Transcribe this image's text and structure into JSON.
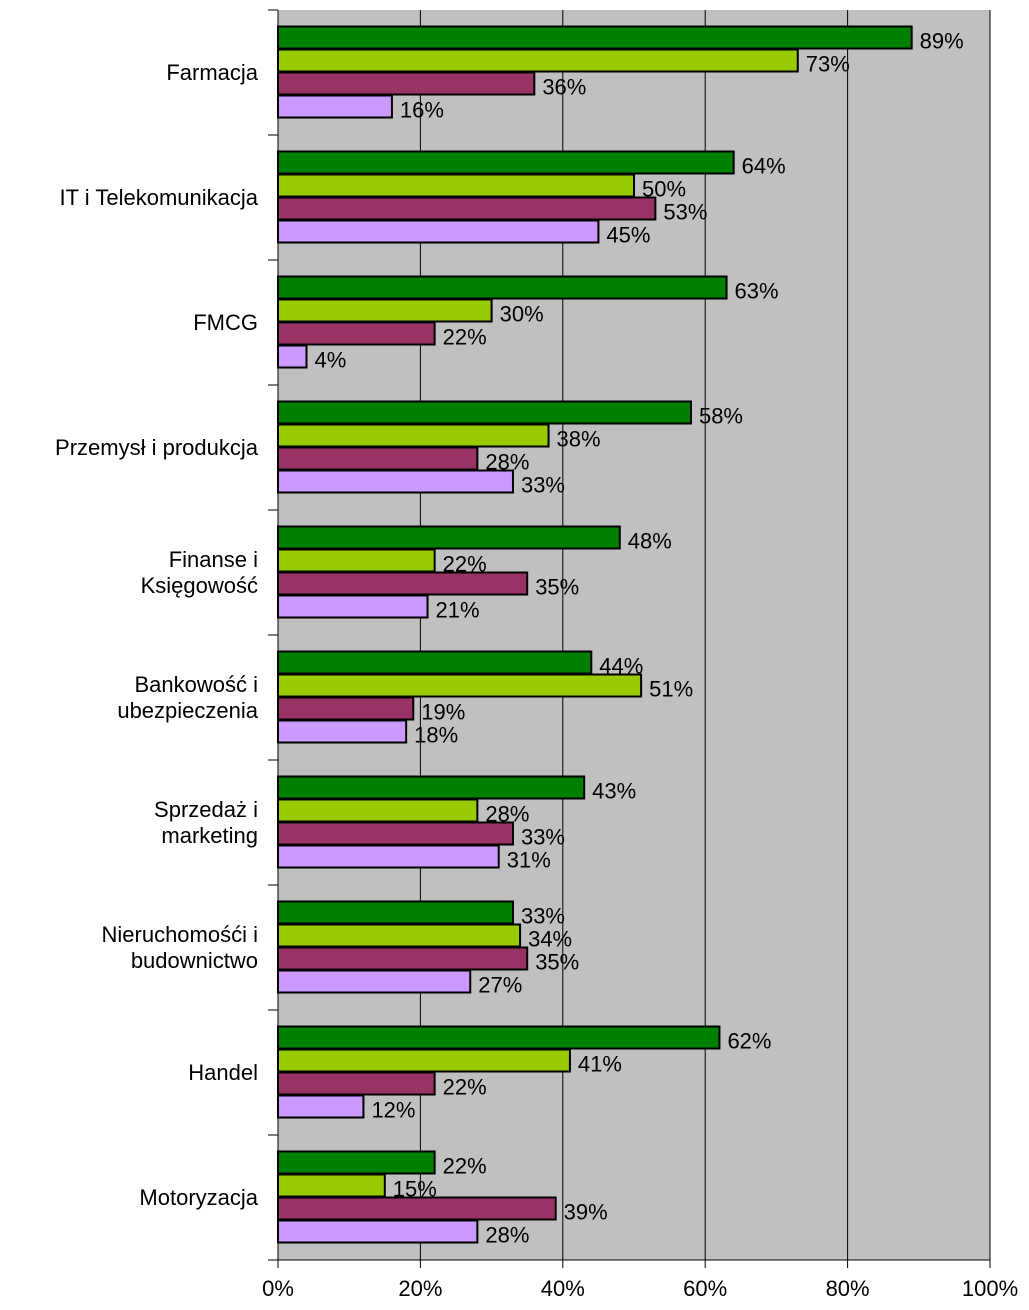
{
  "chart_data": {
    "type": "hbar",
    "categories": [
      "Farmacja",
      "IT i Telekomunikacja",
      "FMCG",
      "Przemysł i produkcja",
      "Finanse i\nKsięgowość",
      "Bankowość i\nubezpieczenia",
      "Sprzedaż i\nmarketing",
      "Nieruchomośći i\nbudownictwo",
      "Handel",
      "Motoryzacja"
    ],
    "series": [
      {
        "color": "#008000",
        "values": [
          89,
          64,
          63,
          58,
          48,
          44,
          43,
          33,
          62,
          22
        ],
        "value_labels": [
          "89%",
          "64%",
          "63%",
          "58%",
          "48%",
          "44%",
          "43%",
          "33%",
          "62%",
          "22%"
        ]
      },
      {
        "color": "#99cc00",
        "values": [
          73,
          50,
          30,
          38,
          22,
          51,
          28,
          34,
          41,
          15
        ],
        "value_labels": [
          "73%",
          "50%",
          "30%",
          "38%",
          "22%",
          "51%",
          "28%",
          "34%",
          "41%",
          "15%"
        ]
      },
      {
        "color": "#993366",
        "values": [
          36,
          53,
          22,
          28,
          35,
          19,
          33,
          35,
          22,
          39
        ],
        "value_labels": [
          "36%",
          "53%",
          "22%",
          "28%",
          "35%",
          "19%",
          "33%",
          "35%",
          "22%",
          "39%"
        ]
      },
      {
        "color": "#cc99ff",
        "values": [
          16,
          45,
          4,
          33,
          21,
          18,
          31,
          27,
          12,
          28
        ],
        "value_labels": [
          "16%",
          "45%",
          "4%",
          "33%",
          "21%",
          "18%",
          "31%",
          "27%",
          "12%",
          "28%"
        ]
      }
    ],
    "xlim": [
      0,
      100
    ],
    "xticks": [
      {
        "value": 0,
        "label": "0%"
      },
      {
        "value": 20,
        "label": "20%"
      },
      {
        "value": 40,
        "label": "40%"
      },
      {
        "value": 60,
        "label": "60%"
      },
      {
        "value": 80,
        "label": "80%"
      },
      {
        "value": 100,
        "label": "100%"
      }
    ],
    "grid": true,
    "plot_background": "#c0c0c0"
  }
}
